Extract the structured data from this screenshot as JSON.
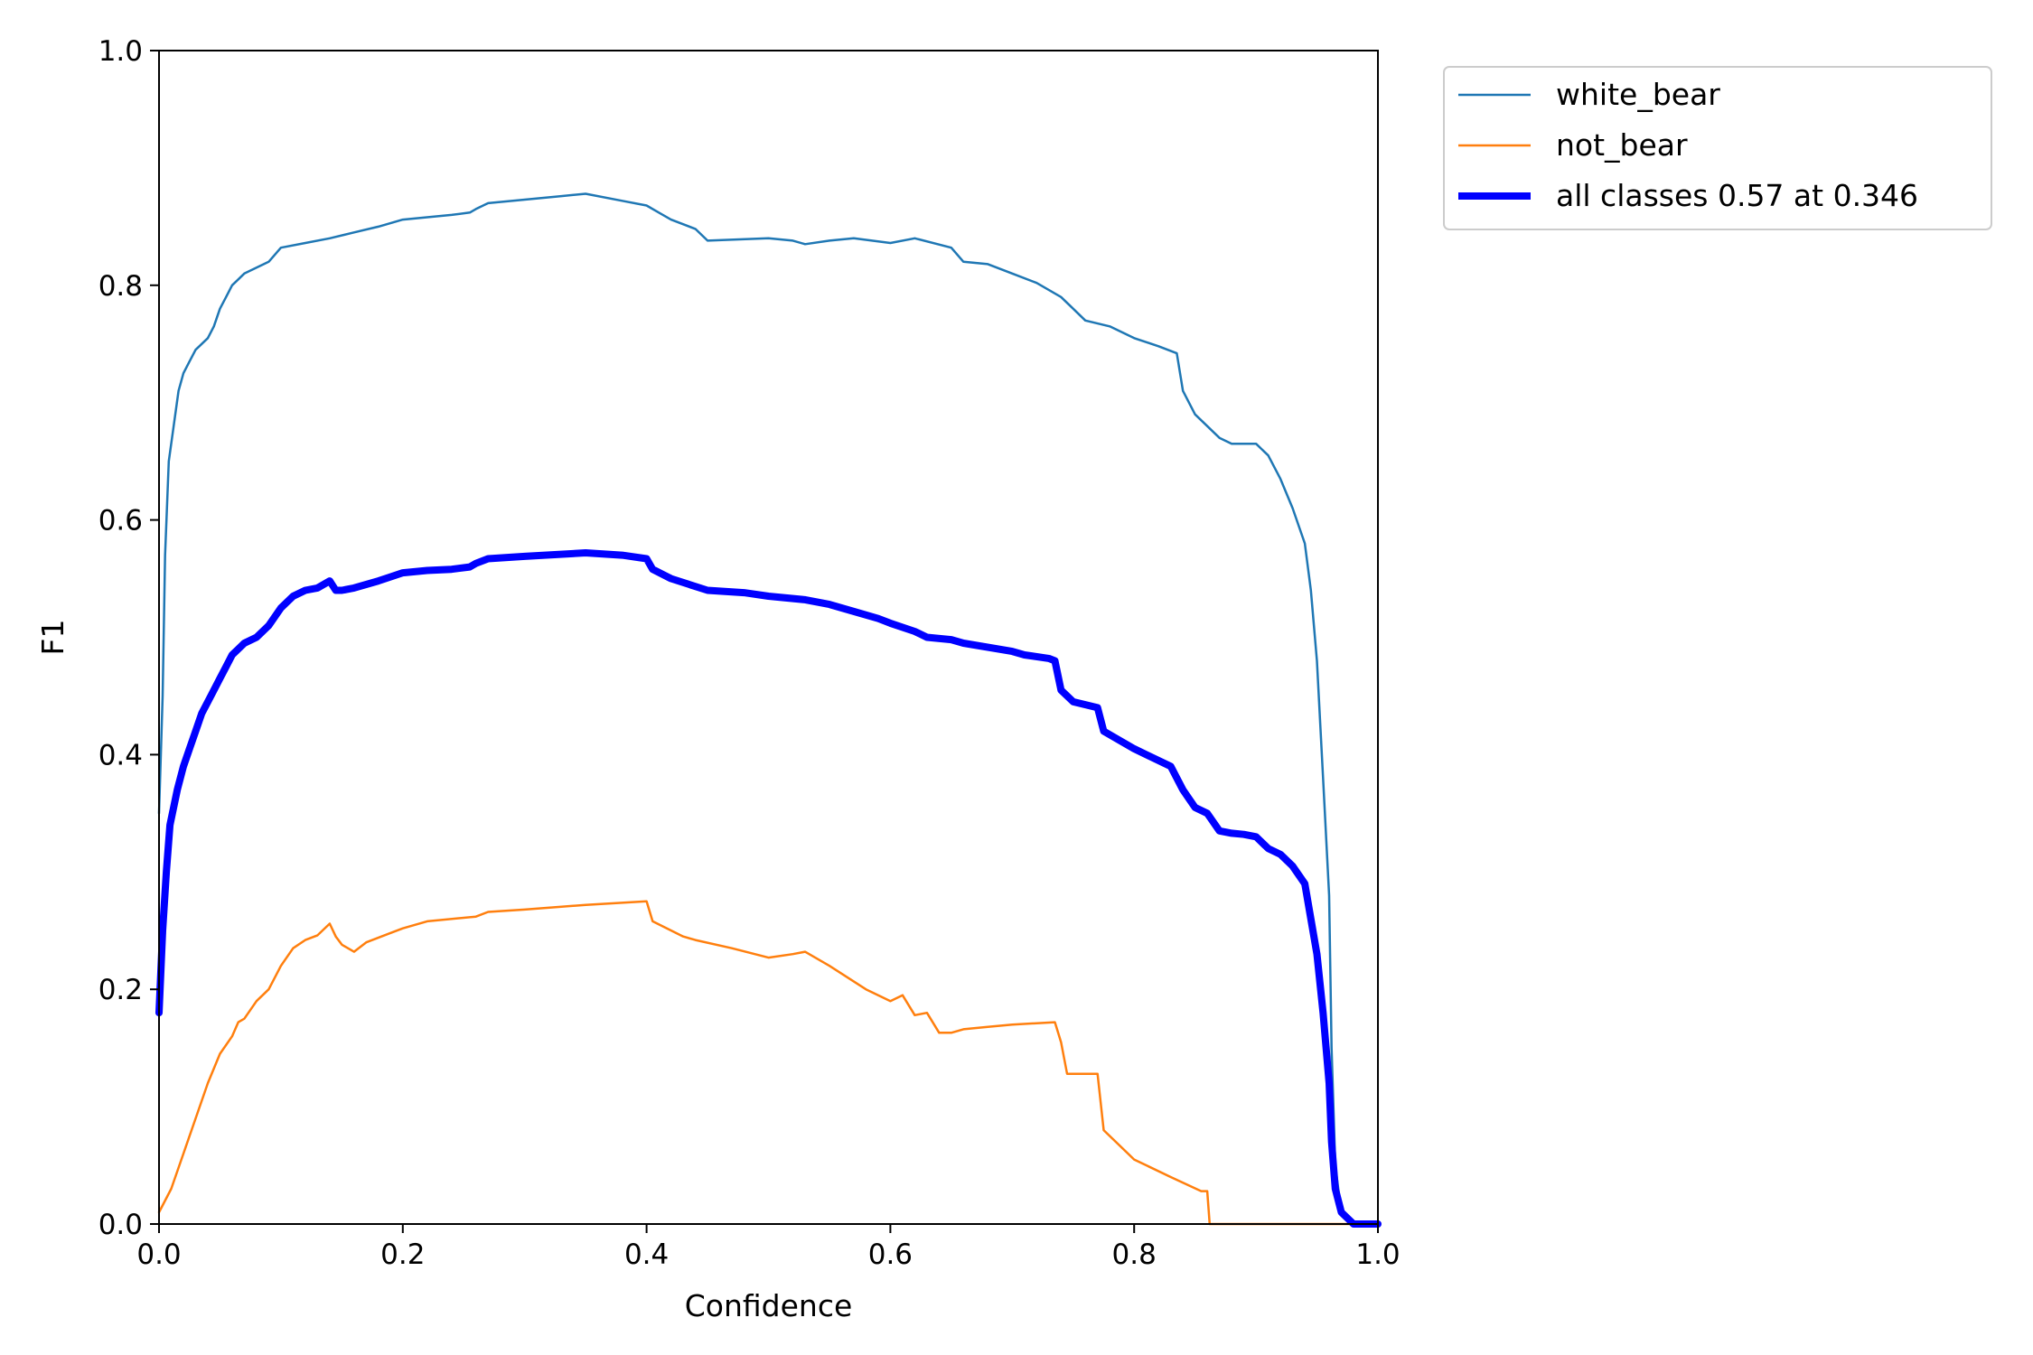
{
  "chart_data": {
    "type": "line",
    "title": "",
    "xlabel": "Confidence",
    "ylabel": "F1",
    "xlim": [
      0,
      1
    ],
    "ylim": [
      0,
      1
    ],
    "xticks": [
      "0.0",
      "0.2",
      "0.4",
      "0.6",
      "0.8",
      "1.0"
    ],
    "yticks": [
      "0.0",
      "0.2",
      "0.4",
      "0.6",
      "0.8",
      "1.0"
    ],
    "grid": false,
    "legend_position": "outside-top-right",
    "series": [
      {
        "name": "white_bear",
        "color": "#1f77b4",
        "width": "thin",
        "points": [
          [
            0,
            0.35
          ],
          [
            0.003,
            0.45
          ],
          [
            0.005,
            0.57
          ],
          [
            0.008,
            0.65
          ],
          [
            0.012,
            0.68
          ],
          [
            0.016,
            0.71
          ],
          [
            0.02,
            0.725
          ],
          [
            0.025,
            0.735
          ],
          [
            0.03,
            0.745
          ],
          [
            0.035,
            0.75
          ],
          [
            0.04,
            0.755
          ],
          [
            0.045,
            0.765
          ],
          [
            0.05,
            0.78
          ],
          [
            0.055,
            0.79
          ],
          [
            0.06,
            0.8
          ],
          [
            0.065,
            0.805
          ],
          [
            0.07,
            0.81
          ],
          [
            0.08,
            0.815
          ],
          [
            0.09,
            0.82
          ],
          [
            0.1,
            0.832
          ],
          [
            0.12,
            0.836
          ],
          [
            0.14,
            0.84
          ],
          [
            0.16,
            0.845
          ],
          [
            0.18,
            0.85
          ],
          [
            0.2,
            0.856
          ],
          [
            0.22,
            0.858
          ],
          [
            0.24,
            0.86
          ],
          [
            0.255,
            0.862
          ],
          [
            0.26,
            0.865
          ],
          [
            0.27,
            0.87
          ],
          [
            0.3,
            0.873
          ],
          [
            0.33,
            0.876
          ],
          [
            0.35,
            0.878
          ],
          [
            0.38,
            0.872
          ],
          [
            0.4,
            0.868
          ],
          [
            0.41,
            0.862
          ],
          [
            0.42,
            0.856
          ],
          [
            0.44,
            0.848
          ],
          [
            0.45,
            0.838
          ],
          [
            0.5,
            0.84
          ],
          [
            0.52,
            0.838
          ],
          [
            0.53,
            0.835
          ],
          [
            0.55,
            0.838
          ],
          [
            0.57,
            0.84
          ],
          [
            0.6,
            0.836
          ],
          [
            0.62,
            0.84
          ],
          [
            0.65,
            0.832
          ],
          [
            0.66,
            0.82
          ],
          [
            0.68,
            0.818
          ],
          [
            0.7,
            0.81
          ],
          [
            0.72,
            0.802
          ],
          [
            0.74,
            0.79
          ],
          [
            0.75,
            0.78
          ],
          [
            0.76,
            0.77
          ],
          [
            0.78,
            0.765
          ],
          [
            0.8,
            0.755
          ],
          [
            0.82,
            0.748
          ],
          [
            0.835,
            0.742
          ],
          [
            0.84,
            0.71
          ],
          [
            0.85,
            0.69
          ],
          [
            0.86,
            0.68
          ],
          [
            0.87,
            0.67
          ],
          [
            0.88,
            0.665
          ],
          [
            0.89,
            0.665
          ],
          [
            0.9,
            0.665
          ],
          [
            0.91,
            0.655
          ],
          [
            0.92,
            0.635
          ],
          [
            0.93,
            0.61
          ],
          [
            0.94,
            0.58
          ],
          [
            0.945,
            0.54
          ],
          [
            0.95,
            0.48
          ],
          [
            0.955,
            0.38
          ],
          [
            0.96,
            0.28
          ],
          [
            0.962,
            0.15
          ],
          [
            0.965,
            0.05
          ],
          [
            0.97,
            0.01
          ],
          [
            0.98,
            0
          ],
          [
            1.0,
            0
          ]
        ]
      },
      {
        "name": "not_bear",
        "color": "#ff7f0e",
        "width": "thin",
        "points": [
          [
            0,
            0.01
          ],
          [
            0.01,
            0.03
          ],
          [
            0.02,
            0.06
          ],
          [
            0.03,
            0.09
          ],
          [
            0.04,
            0.12
          ],
          [
            0.05,
            0.145
          ],
          [
            0.06,
            0.16
          ],
          [
            0.065,
            0.172
          ],
          [
            0.07,
            0.175
          ],
          [
            0.08,
            0.19
          ],
          [
            0.09,
            0.2
          ],
          [
            0.1,
            0.22
          ],
          [
            0.11,
            0.235
          ],
          [
            0.12,
            0.242
          ],
          [
            0.13,
            0.246
          ],
          [
            0.14,
            0.256
          ],
          [
            0.145,
            0.245
          ],
          [
            0.15,
            0.238
          ],
          [
            0.16,
            0.232
          ],
          [
            0.17,
            0.24
          ],
          [
            0.19,
            0.248
          ],
          [
            0.2,
            0.252
          ],
          [
            0.22,
            0.258
          ],
          [
            0.26,
            0.262
          ],
          [
            0.27,
            0.266
          ],
          [
            0.3,
            0.268
          ],
          [
            0.35,
            0.272
          ],
          [
            0.4,
            0.275
          ],
          [
            0.405,
            0.258
          ],
          [
            0.43,
            0.245
          ],
          [
            0.44,
            0.242
          ],
          [
            0.47,
            0.235
          ],
          [
            0.5,
            0.227
          ],
          [
            0.52,
            0.23
          ],
          [
            0.53,
            0.232
          ],
          [
            0.55,
            0.22
          ],
          [
            0.58,
            0.2
          ],
          [
            0.6,
            0.19
          ],
          [
            0.61,
            0.195
          ],
          [
            0.62,
            0.178
          ],
          [
            0.63,
            0.18
          ],
          [
            0.64,
            0.163
          ],
          [
            0.65,
            0.163
          ],
          [
            0.66,
            0.166
          ],
          [
            0.68,
            0.168
          ],
          [
            0.7,
            0.17
          ],
          [
            0.735,
            0.172
          ],
          [
            0.74,
            0.155
          ],
          [
            0.745,
            0.128
          ],
          [
            0.77,
            0.128
          ],
          [
            0.775,
            0.08
          ],
          [
            0.8,
            0.055
          ],
          [
            0.83,
            0.04
          ],
          [
            0.855,
            0.028
          ],
          [
            0.86,
            0.028
          ],
          [
            0.862,
            0
          ],
          [
            1.0,
            0
          ]
        ]
      },
      {
        "name": "all classes 0.57 at 0.346",
        "color": "#0000ff",
        "width": "thick",
        "points": [
          [
            0,
            0.18
          ],
          [
            0.003,
            0.25
          ],
          [
            0.006,
            0.3
          ],
          [
            0.009,
            0.34
          ],
          [
            0.015,
            0.37
          ],
          [
            0.02,
            0.39
          ],
          [
            0.025,
            0.405
          ],
          [
            0.03,
            0.42
          ],
          [
            0.035,
            0.435
          ],
          [
            0.04,
            0.445
          ],
          [
            0.045,
            0.455
          ],
          [
            0.05,
            0.465
          ],
          [
            0.055,
            0.475
          ],
          [
            0.06,
            0.485
          ],
          [
            0.065,
            0.49
          ],
          [
            0.07,
            0.495
          ],
          [
            0.08,
            0.5
          ],
          [
            0.09,
            0.51
          ],
          [
            0.1,
            0.525
          ],
          [
            0.11,
            0.535
          ],
          [
            0.12,
            0.54
          ],
          [
            0.13,
            0.542
          ],
          [
            0.14,
            0.548
          ],
          [
            0.145,
            0.54
          ],
          [
            0.15,
            0.54
          ],
          [
            0.16,
            0.542
          ],
          [
            0.17,
            0.545
          ],
          [
            0.18,
            0.548
          ],
          [
            0.2,
            0.555
          ],
          [
            0.22,
            0.557
          ],
          [
            0.24,
            0.558
          ],
          [
            0.255,
            0.56
          ],
          [
            0.26,
            0.563
          ],
          [
            0.27,
            0.567
          ],
          [
            0.3,
            0.569
          ],
          [
            0.35,
            0.572
          ],
          [
            0.38,
            0.57
          ],
          [
            0.4,
            0.567
          ],
          [
            0.405,
            0.558
          ],
          [
            0.42,
            0.55
          ],
          [
            0.435,
            0.545
          ],
          [
            0.45,
            0.54
          ],
          [
            0.48,
            0.538
          ],
          [
            0.5,
            0.535
          ],
          [
            0.53,
            0.532
          ],
          [
            0.55,
            0.528
          ],
          [
            0.57,
            0.522
          ],
          [
            0.59,
            0.516
          ],
          [
            0.6,
            0.512
          ],
          [
            0.62,
            0.505
          ],
          [
            0.63,
            0.5
          ],
          [
            0.65,
            0.498
          ],
          [
            0.66,
            0.495
          ],
          [
            0.7,
            0.488
          ],
          [
            0.71,
            0.485
          ],
          [
            0.73,
            0.482
          ],
          [
            0.735,
            0.48
          ],
          [
            0.74,
            0.455
          ],
          [
            0.75,
            0.445
          ],
          [
            0.77,
            0.44
          ],
          [
            0.775,
            0.42
          ],
          [
            0.8,
            0.405
          ],
          [
            0.83,
            0.39
          ],
          [
            0.84,
            0.37
          ],
          [
            0.85,
            0.355
          ],
          [
            0.86,
            0.35
          ],
          [
            0.87,
            0.335
          ],
          [
            0.88,
            0.333
          ],
          [
            0.89,
            0.332
          ],
          [
            0.9,
            0.33
          ],
          [
            0.91,
            0.32
          ],
          [
            0.92,
            0.315
          ],
          [
            0.93,
            0.305
          ],
          [
            0.94,
            0.29
          ],
          [
            0.945,
            0.26
          ],
          [
            0.95,
            0.23
          ],
          [
            0.955,
            0.18
          ],
          [
            0.96,
            0.12
          ],
          [
            0.962,
            0.07
          ],
          [
            0.965,
            0.03
          ],
          [
            0.97,
            0.01
          ],
          [
            0.98,
            0
          ],
          [
            1.0,
            0
          ]
        ]
      }
    ]
  }
}
